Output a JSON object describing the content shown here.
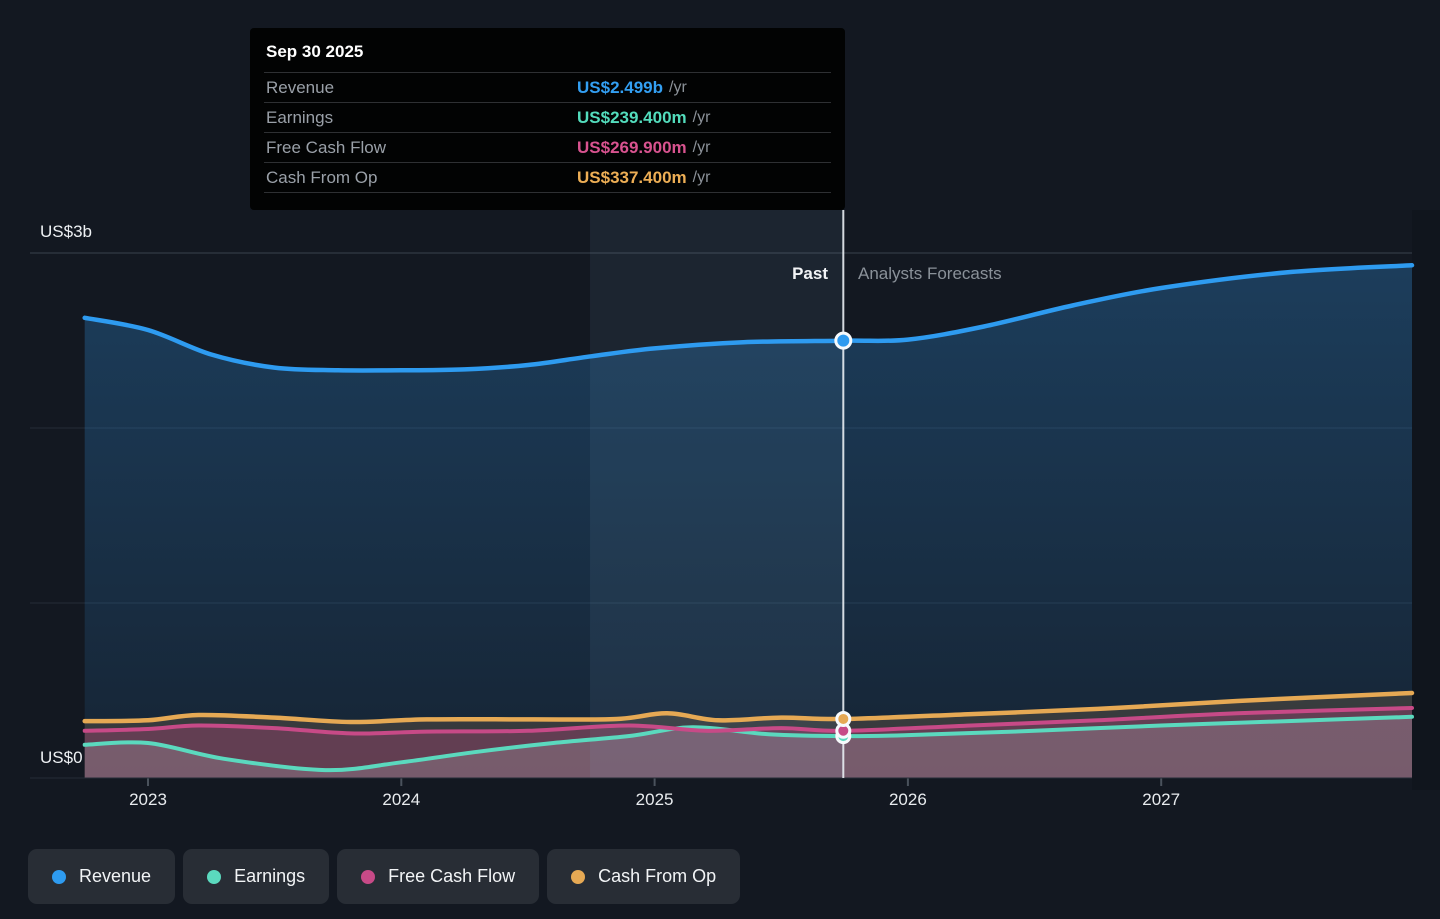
{
  "tooltip": {
    "date": "Sep 30 2025",
    "rows": [
      {
        "label": "Revenue",
        "value": "US$2.499b",
        "suffix": "/yr",
        "color": "#339ff2"
      },
      {
        "label": "Earnings",
        "value": "US$239.400m",
        "suffix": "/yr",
        "color": "#53dcbc"
      },
      {
        "label": "Free Cash Flow",
        "value": "US$269.900m",
        "suffix": "/yr",
        "color": "#d8538f"
      },
      {
        "label": "Cash From Op",
        "value": "US$337.400m",
        "suffix": "/yr",
        "color": "#edae55"
      }
    ]
  },
  "chart_labels": {
    "past": "Past",
    "forecast": "Analysts Forecasts",
    "y_top": "US$3b",
    "y_zero": "US$0"
  },
  "legend": [
    {
      "label": "Revenue",
      "color": "#2e9bf0"
    },
    {
      "label": "Earnings",
      "color": "#5bd9be"
    },
    {
      "label": "Free Cash Flow",
      "color": "#c74a87"
    },
    {
      "label": "Cash From Op",
      "color": "#e6a954"
    }
  ],
  "chart_data": {
    "type": "area",
    "x_unit": "calendar year",
    "x_ticks": [
      2023,
      2024,
      2025,
      2026,
      2027
    ],
    "ylim": [
      0,
      3
    ],
    "y_gridlines": [
      3,
      2,
      1,
      0
    ],
    "divider_year": 2025.745,
    "divider_date": "Sep 30 2025",
    "past_label": "Past",
    "forecast_label": "Analysts Forecasts",
    "units": "US$ billions per year",
    "series": [
      {
        "name": "Revenue",
        "color": "#2e9bf0",
        "x": [
          2022.75,
          2023.0,
          2023.25,
          2023.5,
          2023.75,
          2024.0,
          2024.25,
          2024.5,
          2024.75,
          2025.0,
          2025.35,
          2025.745,
          2026.0,
          2026.3,
          2026.65,
          2027.0,
          2027.5,
          2027.99
        ],
        "y": [
          2.63,
          2.56,
          2.42,
          2.345,
          2.33,
          2.33,
          2.335,
          2.36,
          2.41,
          2.455,
          2.49,
          2.499,
          2.505,
          2.58,
          2.7,
          2.8,
          2.89,
          2.93
        ]
      },
      {
        "name": "Earnings",
        "color": "#5bd9be",
        "x": [
          2022.75,
          2023.0,
          2023.3,
          2023.7,
          2024.0,
          2024.3,
          2024.6,
          2024.9,
          2025.15,
          2025.45,
          2025.745,
          2026.0,
          2026.5,
          2027.0,
          2027.5,
          2027.99
        ],
        "y": [
          0.19,
          0.2,
          0.11,
          0.045,
          0.09,
          0.15,
          0.2,
          0.24,
          0.29,
          0.25,
          0.2394,
          0.245,
          0.27,
          0.3,
          0.325,
          0.35
        ]
      },
      {
        "name": "Free Cash Flow",
        "color": "#c74a87",
        "x": [
          2022.75,
          2023.0,
          2023.2,
          2023.5,
          2023.8,
          2024.1,
          2024.5,
          2024.9,
          2025.2,
          2025.5,
          2025.745,
          2026.25,
          2026.75,
          2027.3,
          2027.99
        ],
        "y": [
          0.27,
          0.28,
          0.3,
          0.285,
          0.255,
          0.265,
          0.27,
          0.3,
          0.27,
          0.285,
          0.2699,
          0.3,
          0.33,
          0.37,
          0.4
        ]
      },
      {
        "name": "Cash From Op",
        "color": "#e6a954",
        "x": [
          2022.75,
          2023.0,
          2023.2,
          2023.5,
          2023.8,
          2024.1,
          2024.5,
          2024.85,
          2025.05,
          2025.25,
          2025.5,
          2025.745,
          2026.25,
          2026.75,
          2027.3,
          2027.99
        ],
        "y": [
          0.325,
          0.33,
          0.36,
          0.345,
          0.32,
          0.335,
          0.335,
          0.3374,
          0.37,
          0.33,
          0.345,
          0.3374,
          0.365,
          0.395,
          0.44,
          0.486
        ]
      }
    ],
    "divider_markers": [
      {
        "series": "Revenue",
        "value": 2.499
      },
      {
        "series": "Earnings",
        "value": 0.2394
      },
      {
        "series": "Free Cash Flow",
        "value": 0.2699
      },
      {
        "series": "Cash From Op",
        "value": 0.3374
      }
    ]
  }
}
